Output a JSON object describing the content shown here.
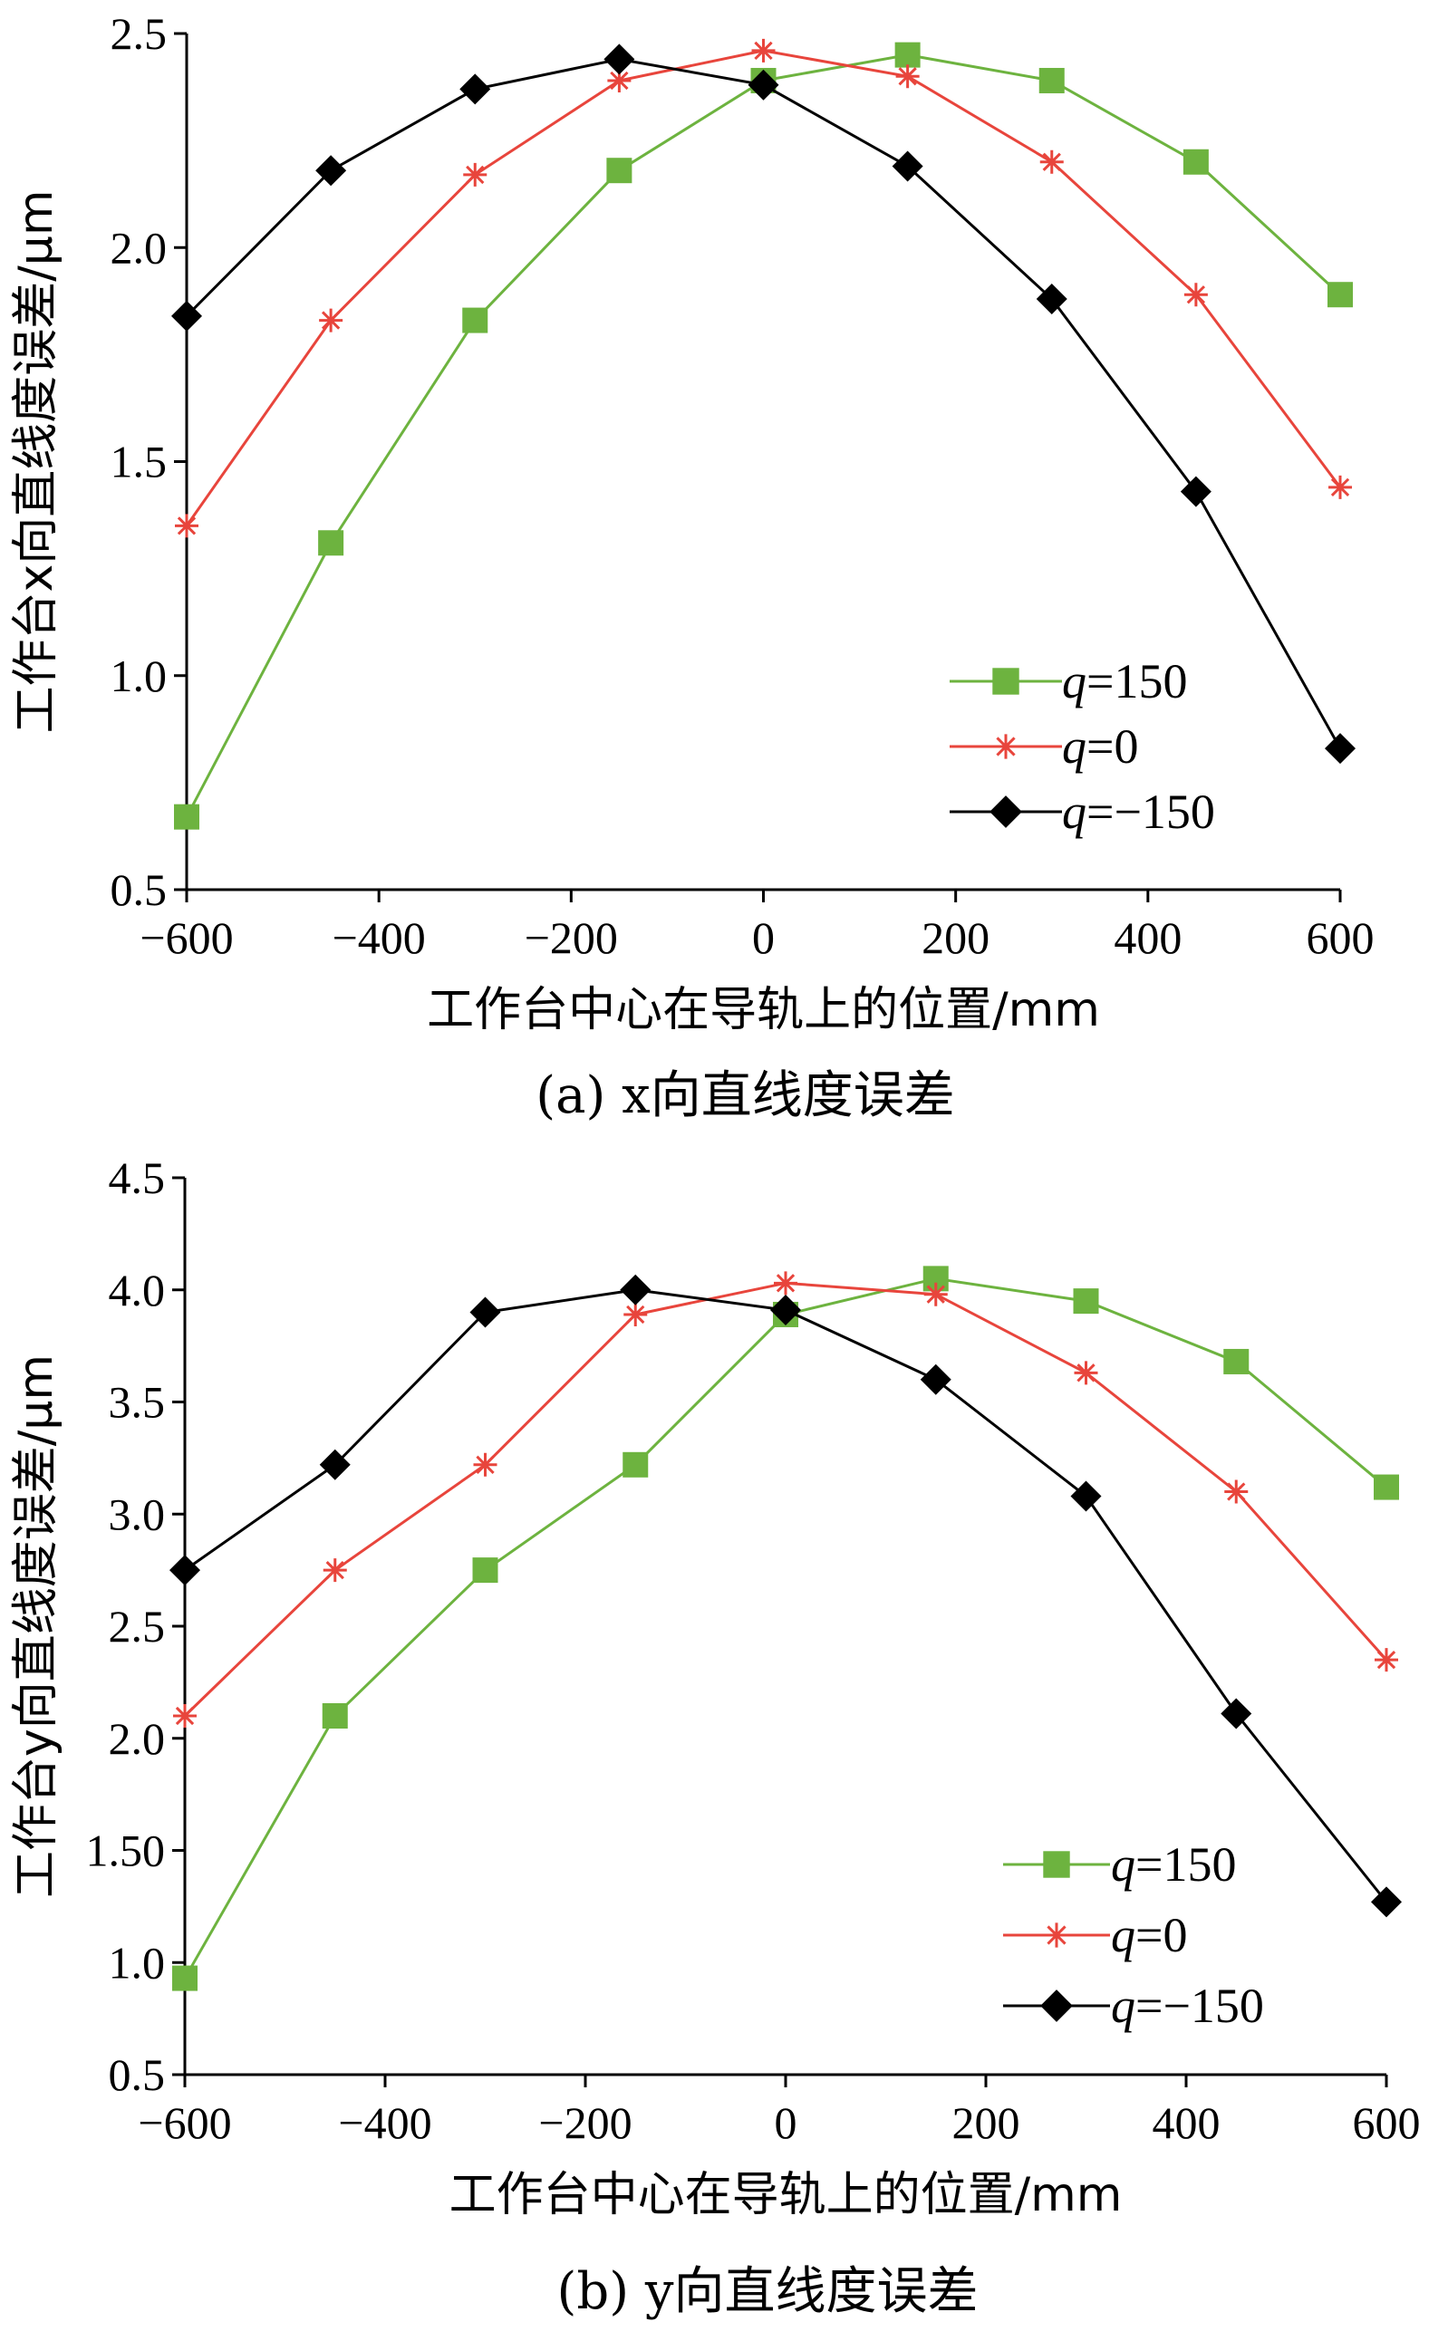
{
  "chart_data": [
    {
      "type": "line",
      "x": [
        -600,
        -450,
        -300,
        -150,
        0,
        150,
        300,
        450,
        600
      ],
      "xlim": [
        -600,
        600
      ],
      "ylim": [
        0.5,
        2.5
      ],
      "xticks": [
        "−600",
        "−400",
        "−200",
        "0",
        "200",
        "400",
        "600"
      ],
      "xtick_values": [
        -600,
        -400,
        -200,
        0,
        200,
        400,
        600
      ],
      "yticks": [
        "0.5",
        "1.0",
        "1.5",
        "2.0",
        "2.5"
      ],
      "ytick_values": [
        0.5,
        1.0,
        1.5,
        2.0,
        2.5
      ],
      "xlabel": "工作台中心在导轨上的位置/mm",
      "ylabel": "工作台x向直线度误差/μm",
      "caption": "(a)  x向直线度误差",
      "legend_position": "lower-right",
      "grid": false,
      "series": [
        {
          "name": "q=150",
          "color": "#6db33f",
          "marker": "square",
          "values": [
            0.67,
            1.31,
            1.83,
            2.18,
            2.39,
            2.45,
            2.39,
            2.2,
            1.89
          ]
        },
        {
          "name": "q=0",
          "color": "#e8453c",
          "marker": "asterisk",
          "values": [
            1.35,
            1.83,
            2.17,
            2.39,
            2.46,
            2.4,
            2.2,
            1.89,
            1.44
          ]
        },
        {
          "name": "q=−150",
          "color": "#000000",
          "marker": "diamond",
          "values": [
            1.84,
            2.18,
            2.37,
            2.44,
            2.38,
            2.19,
            1.88,
            1.43,
            0.83
          ]
        }
      ]
    },
    {
      "type": "line",
      "x": [
        -600,
        -450,
        -300,
        -150,
        0,
        150,
        300,
        450,
        600
      ],
      "xlim": [
        -600,
        600
      ],
      "ylim": [
        0.5,
        4.5
      ],
      "xticks": [
        "−600",
        "−400",
        "−200",
        "0",
        "200",
        "400",
        "600"
      ],
      "xtick_values": [
        -600,
        -400,
        -200,
        0,
        200,
        400,
        600
      ],
      "yticks": [
        "0.5",
        "1.0",
        "1.50",
        "2.0",
        "2.5",
        "3.0",
        "3.5",
        "4.0",
        "4.5"
      ],
      "ytick_values": [
        0.5,
        1.0,
        1.5,
        2.0,
        2.5,
        3.0,
        3.5,
        4.0,
        4.5
      ],
      "xlabel": "工作台中心在导轨上的位置/mm",
      "ylabel": "工作台y向直线度误差/μm",
      "caption": "(b)  y向直线度误差",
      "legend_position": "lower-right",
      "grid": false,
      "series": [
        {
          "name": "q=150",
          "color": "#6db33f",
          "marker": "square",
          "values": [
            0.93,
            2.1,
            2.75,
            3.22,
            3.89,
            4.05,
            3.95,
            3.68,
            3.12
          ]
        },
        {
          "name": "q=0",
          "color": "#e8453c",
          "marker": "asterisk",
          "values": [
            2.1,
            2.75,
            3.22,
            3.89,
            4.03,
            3.98,
            3.63,
            3.1,
            2.35
          ]
        },
        {
          "name": "q=−150",
          "color": "#000000",
          "marker": "diamond",
          "values": [
            2.75,
            3.22,
            3.9,
            4.0,
            3.91,
            3.6,
            3.08,
            2.11,
            1.27
          ]
        }
      ]
    }
  ]
}
